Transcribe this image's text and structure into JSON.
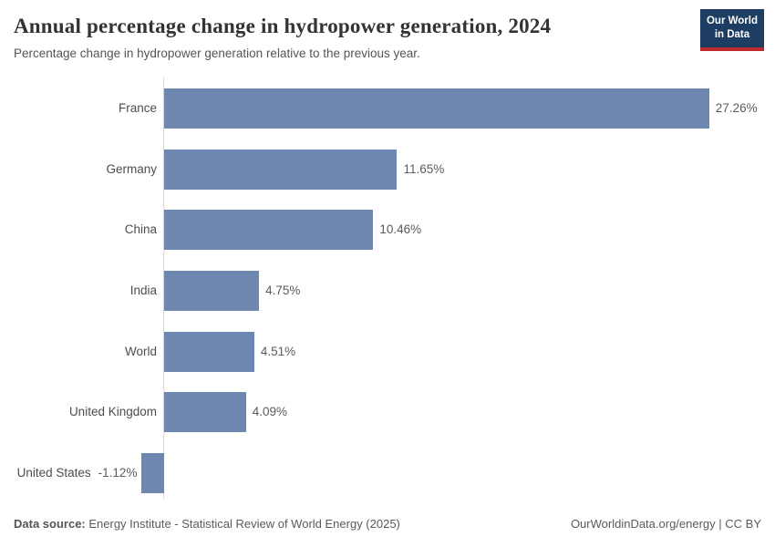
{
  "header": {
    "title": "Annual percentage change in hydropower generation, 2024",
    "subtitle": "Percentage change in hydropower generation relative to the previous year.",
    "logo": {
      "line1": "Our World",
      "line2": "in Data",
      "bg_color": "#1d3d63",
      "accent_color": "#c0292d"
    }
  },
  "chart_data": {
    "type": "bar",
    "orientation": "horizontal",
    "title": "Annual percentage change in hydropower generation, 2024",
    "categories": [
      "France",
      "Germany",
      "China",
      "India",
      "World",
      "United Kingdom",
      "United States"
    ],
    "values": [
      27.26,
      11.65,
      10.46,
      4.75,
      4.51,
      4.09,
      -1.12
    ],
    "value_labels": [
      "27.26%",
      "11.65%",
      "10.46%",
      "4.75%",
      "4.51%",
      "4.09%",
      "-1.12%"
    ],
    "xlabel": "",
    "ylabel": "",
    "xlim": [
      -1.12,
      27.26
    ],
    "grid": false,
    "legend": false,
    "bar_color": "#6d87b0",
    "axis_color": "#d9d9d9"
  },
  "footer": {
    "source_label": "Data source:",
    "source_text": " Energy Institute - Statistical Review of World Energy (2025)",
    "rights": "OurWorldinData.org/energy | CC BY"
  }
}
